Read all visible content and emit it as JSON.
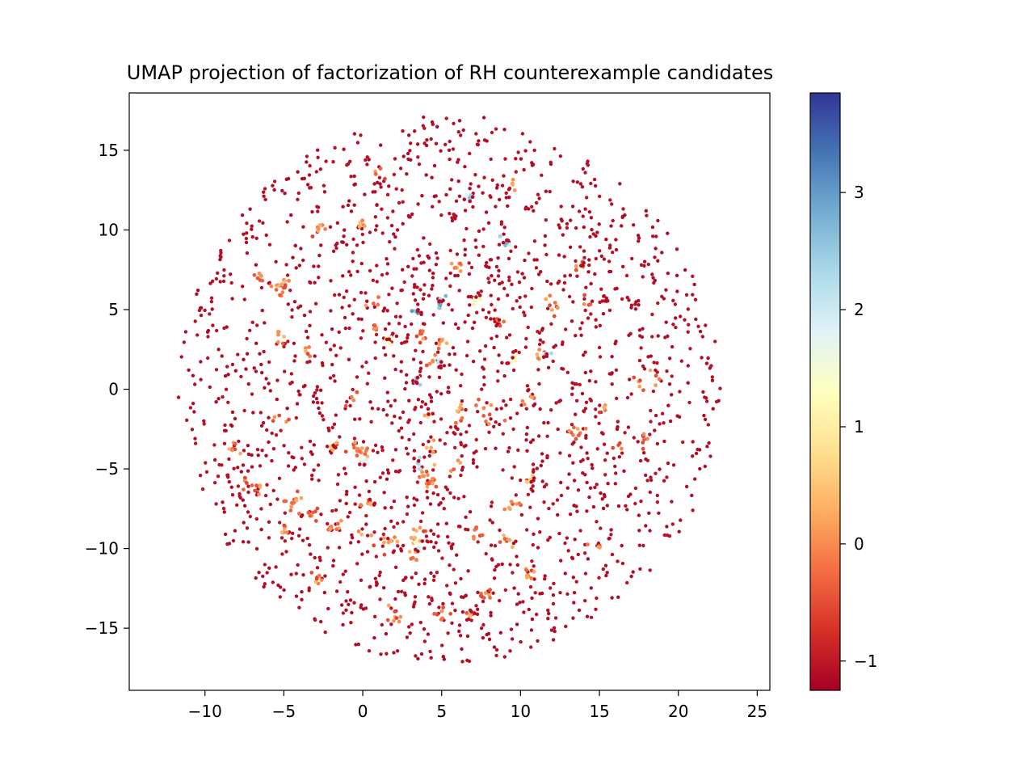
{
  "chart_data": {
    "type": "scatter",
    "title": "UMAP projection of factorization of RH counterexample candidates",
    "xlabel": "",
    "ylabel": "",
    "xlim": [
      -14.8,
      25.8
    ],
    "ylim": [
      -18.9,
      18.6
    ],
    "x_ticks": [
      -10,
      -5,
      0,
      5,
      10,
      15,
      20,
      25
    ],
    "x_tick_labels": [
      "−10",
      "−5",
      "0",
      "5",
      "10",
      "15",
      "20",
      "25"
    ],
    "y_ticks": [
      -15,
      -10,
      -5,
      0,
      5,
      10,
      15
    ],
    "y_tick_labels": [
      "−15",
      "−10",
      "−5",
      "0",
      "5",
      "10",
      "15"
    ],
    "grid": false,
    "colormap": "RdYlBu",
    "colormap_stops": [
      "#a50026",
      "#d73027",
      "#f46d43",
      "#fdae61",
      "#fee090",
      "#ffffbf",
      "#e0f3f8",
      "#abd9e9",
      "#74add1",
      "#4575b4",
      "#313695"
    ],
    "colorbar": {
      "range": [
        -1.25,
        3.85
      ],
      "ticks": [
        -1,
        0,
        1,
        2,
        3
      ],
      "tick_labels": [
        "−1",
        "0",
        "1",
        "2",
        "3"
      ]
    },
    "point_cloud": {
      "description_only_for_generation": "approximate disk of points",
      "center": [
        5.5,
        0.0
      ],
      "radius": 17.2,
      "count": 1900,
      "cluster_count": 60,
      "value_background": -1.1
    },
    "highlight_points": [
      {
        "x": 4.9,
        "y": 5.3,
        "v": 2.9
      },
      {
        "x": 3.5,
        "y": 4.8,
        "v": 3.1
      },
      {
        "x": 9.1,
        "y": 9.2,
        "v": 2.8
      },
      {
        "x": 6.8,
        "y": 12.0,
        "v": 2.6
      },
      {
        "x": 3.4,
        "y": 0.5,
        "v": 2.7
      },
      {
        "x": 4.8,
        "y": 1.7,
        "v": 2.2
      },
      {
        "x": 11.6,
        "y": 2.2,
        "v": 2.5
      },
      {
        "x": 0.0,
        "y": -4.6,
        "v": 1.9
      },
      {
        "x": 3.5,
        "y": -4.6,
        "v": 2.4
      },
      {
        "x": 3.5,
        "y": -10.0,
        "v": 2.0
      },
      {
        "x": 7.2,
        "y": 5.8,
        "v": 1.6
      },
      {
        "x": 1.8,
        "y": 3.2,
        "v": 1.4
      },
      {
        "x": 9.6,
        "y": 1.9,
        "v": 1.2
      },
      {
        "x": 4.2,
        "y": -1.6,
        "v": 0.9
      },
      {
        "x": 10.6,
        "y": -5.8,
        "v": 0.7
      },
      {
        "x": -2.0,
        "y": -3.6,
        "v": 0.6
      },
      {
        "x": 6.8,
        "y": -14.2,
        "v": 0.4
      },
      {
        "x": 0.5,
        "y": -7.2,
        "v": 0.3
      },
      {
        "x": 8.6,
        "y": 4.3,
        "v": 0.1
      },
      {
        "x": 13.9,
        "y": 7.8,
        "v": 0.2
      }
    ]
  }
}
